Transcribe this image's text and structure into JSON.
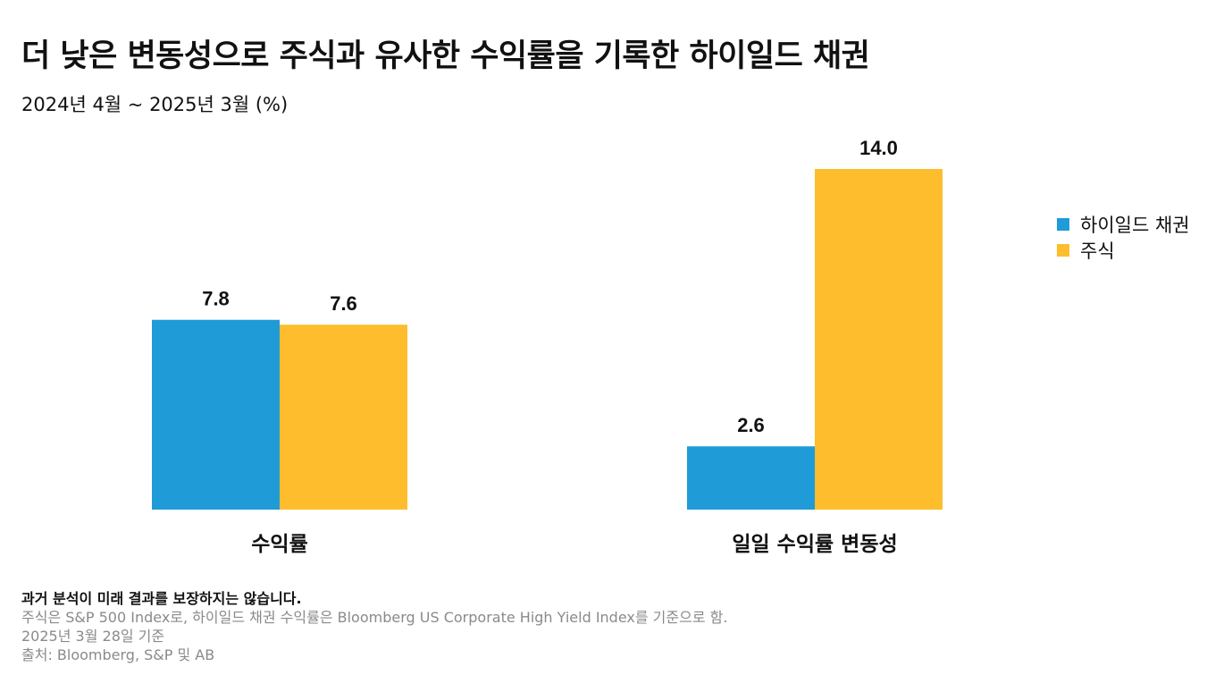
{
  "title": "더 낮은 변동성으로 주식과 유사한 수익률을 기록한 하이일드 채권",
  "subtitle": "2024년 4월 ~ 2025년 3월 (%)",
  "colors": {
    "high_yield": "#1f9bd7",
    "stocks": "#fdbd2c"
  },
  "chart_data": {
    "type": "bar",
    "categories": [
      "수익률",
      "일일 수익률 변동성"
    ],
    "series": [
      {
        "name": "하이일드 채권",
        "values": [
          7.8,
          2.6
        ],
        "labels": [
          "7.8",
          "2.6"
        ]
      },
      {
        "name": "주식",
        "values": [
          7.6,
          14.0
        ],
        "labels": [
          "7.6",
          "14.0"
        ]
      }
    ],
    "ylim": [
      0,
      14.0
    ],
    "grid": false,
    "legend_position": "right"
  },
  "footnotes": {
    "disclaimer": "과거 분석이 미래 결과를 보장하지는 않습니다.",
    "lines": [
      "주식은 S&P 500 Index로, 하이일드 채권 수익률은 Bloomberg US Corporate High Yield Index를 기준으로 함.",
      "2025년 3월 28일 기준",
      "출처: Bloomberg, S&P 및 AB"
    ]
  }
}
